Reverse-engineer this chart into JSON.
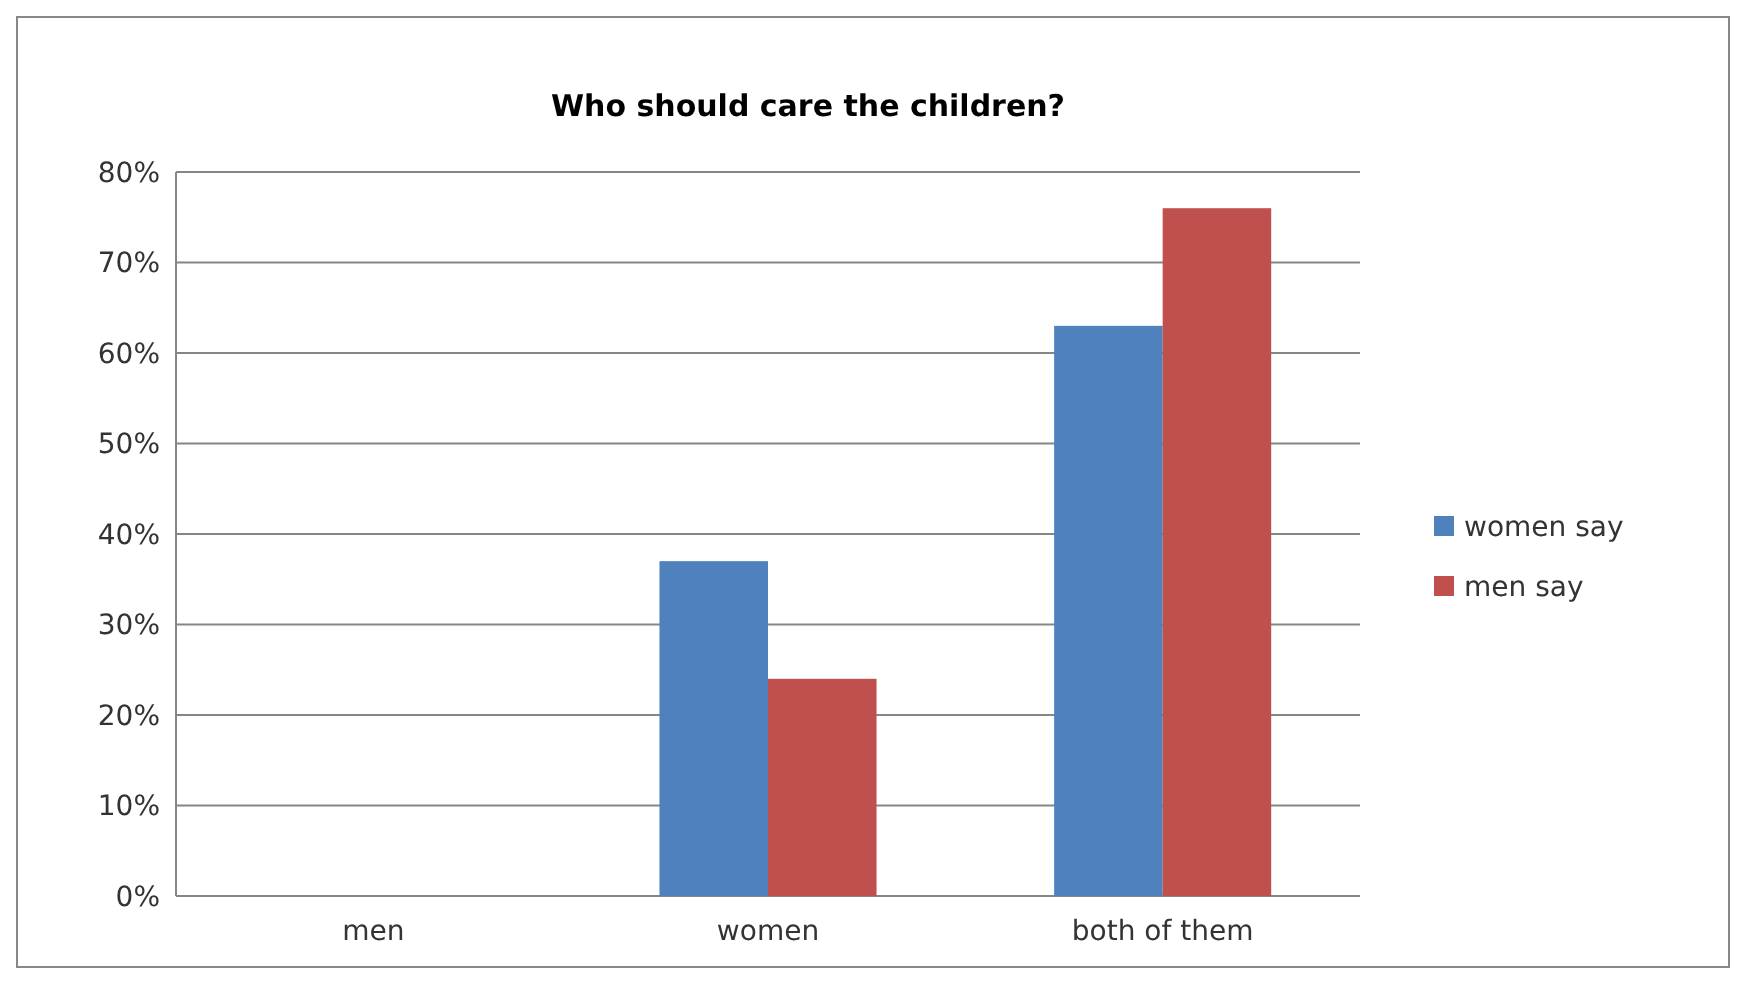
{
  "chart_data": {
    "type": "bar",
    "title": "Who should care the children?",
    "categories": [
      "men",
      "women",
      "both of them"
    ],
    "series": [
      {
        "name": "women say",
        "color": "#4f81bd",
        "values": [
          0,
          37,
          63
        ]
      },
      {
        "name": "men say",
        "color": "#c0504d",
        "values": [
          0,
          24,
          76
        ]
      }
    ],
    "ylim": [
      0,
      80
    ],
    "yticks": [
      {
        "value": 0,
        "label": "0%"
      },
      {
        "value": 10,
        "label": "10%"
      },
      {
        "value": 20,
        "label": "20%"
      },
      {
        "value": 30,
        "label": "30%"
      },
      {
        "value": 40,
        "label": "40%"
      },
      {
        "value": 50,
        "label": "50%"
      },
      {
        "value": 60,
        "label": "60%"
      },
      {
        "value": 70,
        "label": "70%"
      },
      {
        "value": 80,
        "label": "80%"
      }
    ],
    "grid": "y",
    "legend": "right"
  }
}
